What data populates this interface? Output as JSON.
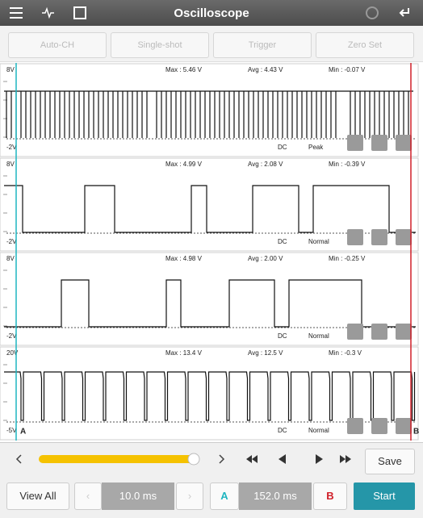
{
  "toolbar": {
    "title": "Oscilloscope"
  },
  "buttons": [
    "Auto-CH",
    "Single-shot",
    "Trigger",
    "Zero Set"
  ],
  "channels": [
    {
      "top": "8V",
      "max": "Max : 5.46 V",
      "avg": "Avg : 4.43 V",
      "min": "Min : -0.07 V",
      "bottom": "-2V",
      "coupling": "DC",
      "mode": "Peak"
    },
    {
      "top": "8V",
      "max": "Max : 4.99 V",
      "avg": "Avg : 2.08 V",
      "min": "Min : -0.39 V",
      "bottom": "-2V",
      "coupling": "DC",
      "mode": "Normal"
    },
    {
      "top": "8V",
      "max": "Max : 4.98 V",
      "avg": "Avg : 2.00 V",
      "min": "Min : -0.25 V",
      "bottom": "-2V",
      "coupling": "DC",
      "mode": "Normal"
    },
    {
      "top": "20V",
      "max": "Max : 13.4 V",
      "avg": "Avg : 12.5 V",
      "min": "Min : -0.3 V",
      "bottom": "-5V",
      "coupling": "DC",
      "mode": "Normal"
    }
  ],
  "cursors": {
    "a": "A",
    "b": "B"
  },
  "controls": {
    "save": "Save",
    "view_all": "View All",
    "time_div": "10.0 ms",
    "a_label": "A",
    "delta": "152.0 ms",
    "b_label": "B",
    "start": "Start"
  }
}
